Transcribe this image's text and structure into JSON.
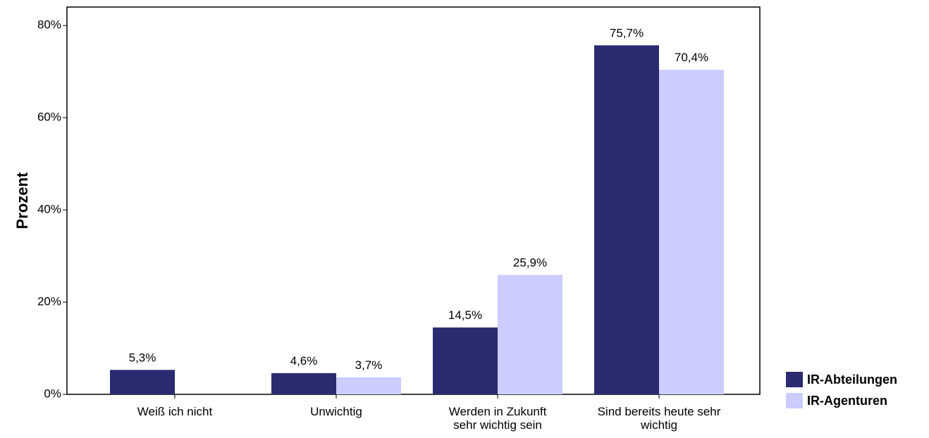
{
  "chart_data": {
    "type": "bar",
    "ylabel": "Prozent",
    "categories": [
      "Weiß ich nicht",
      "Unwichtig",
      "Werden in Zukunft\nsehr wichtig sein",
      "Sind bereits heute sehr\nwichtig"
    ],
    "series": [
      {
        "name": "IR-Abteilungen",
        "color": "#2b2b72",
        "values": [
          5.3,
          4.6,
          14.5,
          75.7
        ],
        "value_labels": [
          "5,3%",
          "4,6%",
          "14,5%",
          "75,7%"
        ]
      },
      {
        "name": "IR-Agenturen",
        "color": "#ccccff",
        "values": [
          null,
          3.7,
          25.9,
          70.4
        ],
        "value_labels": [
          null,
          "3,7%",
          "25,9%",
          "70,4%"
        ]
      }
    ],
    "ylim": [
      0,
      84
    ],
    "yticks": [
      {
        "value": 0,
        "label": "0%"
      },
      {
        "value": 20,
        "label": "20%"
      },
      {
        "value": 40,
        "label": "40%"
      },
      {
        "value": 60,
        "label": "60%"
      },
      {
        "value": 80,
        "label": "80%"
      }
    ],
    "legend": "bottom-right"
  }
}
